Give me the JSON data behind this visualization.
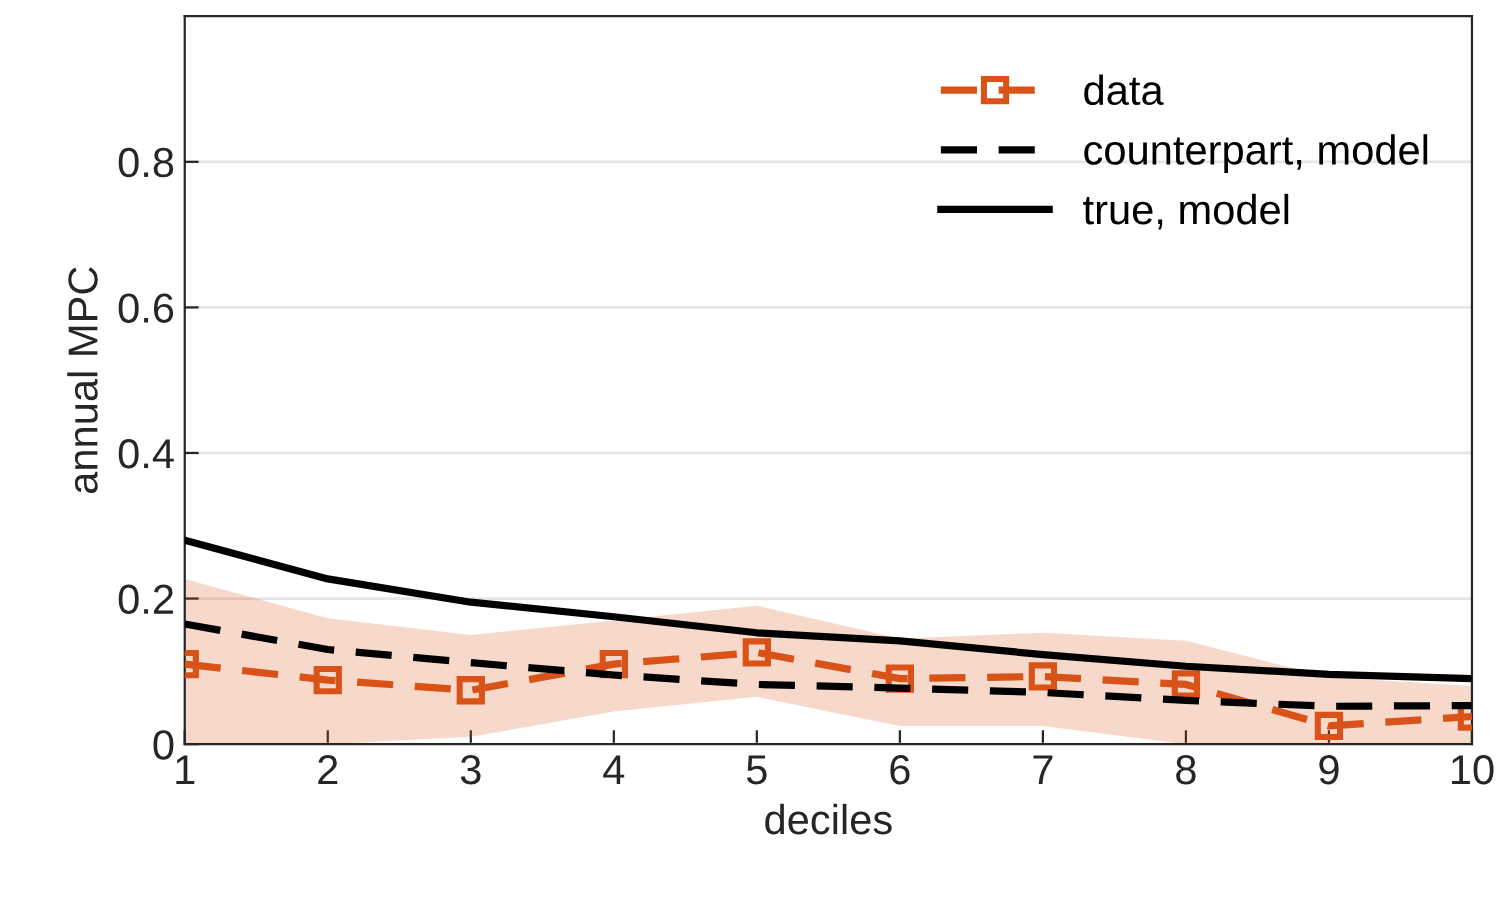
{
  "chart_data": {
    "type": "line",
    "xlabel": "deciles",
    "ylabel": "annual MPC",
    "x": [
      1,
      2,
      3,
      4,
      5,
      6,
      7,
      8,
      9,
      10
    ],
    "series": [
      {
        "name": "data",
        "color": "#d95319",
        "marker": "square",
        "line_style": "dashed",
        "values": [
          0.11,
          0.088,
          0.074,
          0.11,
          0.126,
          0.09,
          0.093,
          0.082,
          0.025,
          0.038
        ],
        "lower": [
          0,
          0,
          0.01,
          0.045,
          0.065,
          0.025,
          0.025,
          0,
          0,
          0
        ],
        "upper": [
          0.227,
          0.173,
          0.15,
          0.17,
          0.19,
          0.145,
          0.153,
          0.142,
          0.092,
          0.08
        ]
      },
      {
        "name": "counterpart, model",
        "color": "#000000",
        "marker": "none",
        "line_style": "dashed",
        "values": [
          0.165,
          0.13,
          0.112,
          0.095,
          0.082,
          0.077,
          0.071,
          0.06,
          0.052,
          0.053
        ]
      },
      {
        "name": "true, model",
        "color": "#000000",
        "marker": "none",
        "line_style": "solid",
        "values": [
          0.28,
          0.227,
          0.195,
          0.175,
          0.153,
          0.142,
          0.123,
          0.107,
          0.096,
          0.09
        ]
      }
    ],
    "xlim": [
      1,
      10
    ],
    "ylim": [
      0,
      1
    ],
    "xticks": [
      1,
      2,
      3,
      4,
      5,
      6,
      7,
      8,
      9,
      10
    ],
    "yticks": [
      0,
      0.2,
      0.4,
      0.6,
      0.8
    ],
    "grid": "y",
    "legend": "top right"
  }
}
